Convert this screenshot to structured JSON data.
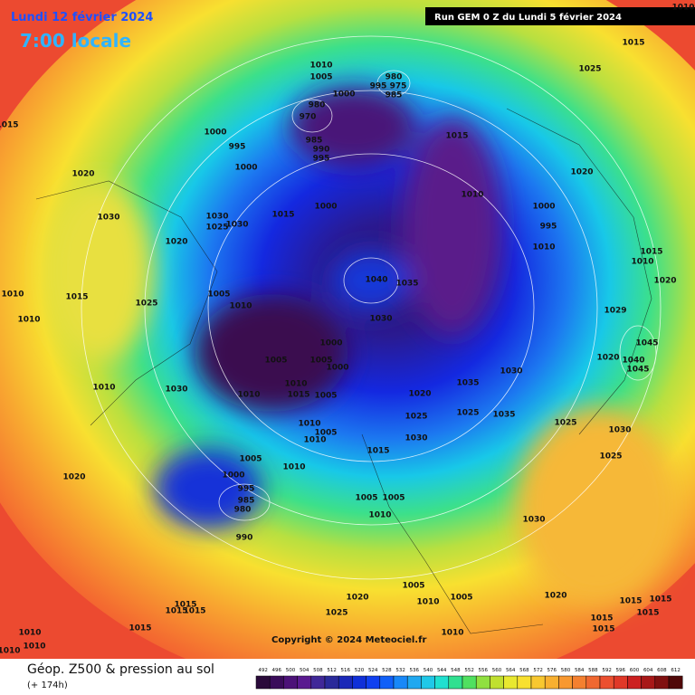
{
  "header": {
    "date": "Lundi 12 février 2024",
    "time": "7:00 locale",
    "run": "Run GEM 0 Z du Lundi 5 février 2024"
  },
  "copyright": "Copyright © 2024 Meteociel.fr",
  "footer": {
    "title": "Géop. Z500 & pression au sol",
    "lead": "(+ 174h)"
  },
  "legend": {
    "levels": [
      492,
      496,
      500,
      504,
      508,
      512,
      516,
      520,
      524,
      528,
      532,
      536,
      540,
      544,
      548,
      552,
      556,
      560,
      564,
      568,
      572,
      576,
      580,
      584,
      588,
      592,
      596,
      600,
      604,
      608,
      612
    ]
  },
  "isobar_labels": [
    "1010",
    "1015",
    "1025",
    "1010",
    "1005",
    "1000",
    "980",
    "995",
    "975",
    "985",
    "980",
    "970",
    "1000",
    "995",
    "1000",
    "985",
    "990",
    "995",
    "1015",
    "1020",
    "1010",
    "1000",
    "995",
    "1010",
    "1015",
    "1010",
    "1020",
    "1020",
    "1030",
    "1030",
    "1025",
    "1030",
    "1015",
    "1000",
    "1020",
    "1015",
    "1010",
    "1010",
    "1015",
    "1025",
    "1005",
    "1010",
    "1040",
    "1035",
    "1030",
    "1029",
    "1045",
    "1040",
    "1045",
    "1020",
    "1000",
    "1005",
    "1005",
    "1000",
    "1030",
    "1010",
    "1010",
    "1010",
    "1015",
    "1005",
    "1020",
    "1035",
    "1030",
    "1025",
    "1025",
    "1035",
    "1025",
    "1030",
    "1010",
    "1005",
    "1010",
    "1030",
    "1015",
    "1025",
    "1005",
    "1010",
    "1000",
    "995",
    "985",
    "980",
    "990",
    "1020",
    "1005",
    "1005",
    "1010",
    "1030",
    "1005",
    "1010",
    "1005",
    "1020",
    "1020",
    "1015",
    "1015",
    "1015",
    "1025",
    "1015",
    "1010",
    "1010",
    "1010",
    "1010",
    "1015",
    "1015",
    "1015",
    "1015",
    "1015"
  ]
}
